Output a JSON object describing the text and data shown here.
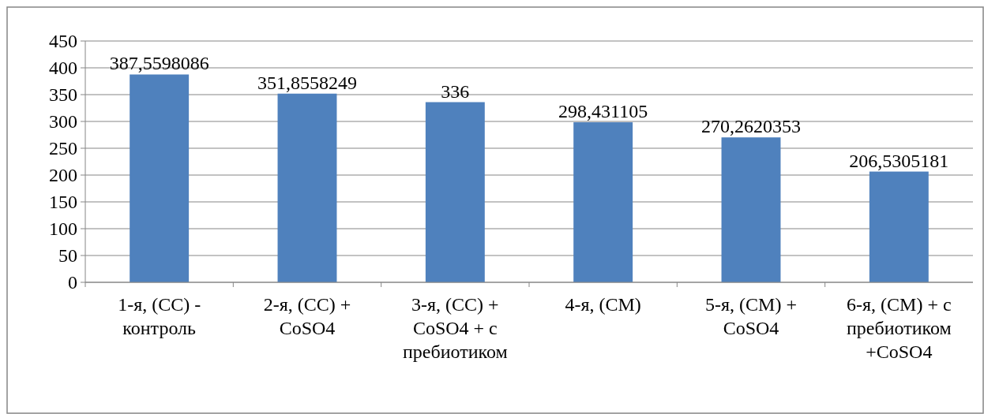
{
  "chart_data": {
    "type": "bar",
    "categories": [
      "1-я, (СС)  - контроль",
      "2-я, (СС) + CoSO4",
      "3-я, (СС) + CoSO4 + с пребиотиком",
      "4-я, (СМ)",
      "5-я, (СМ) + CoSO4",
      "6-я, (СМ) + с пребиотиком +CoSO4"
    ],
    "values": [
      387.5598086,
      351.8558249,
      336,
      298.431105,
      270.2620353,
      206.5305181
    ],
    "value_labels": [
      "387,5598086",
      "351,8558249",
      "336",
      "298,431105",
      "270,2620353",
      "206,5305181"
    ],
    "color": "#4f81bd",
    "ylim": [
      0,
      450
    ],
    "yticks": [
      0,
      50,
      100,
      150,
      200,
      250,
      300,
      350,
      400,
      450
    ],
    "grid": "y"
  }
}
